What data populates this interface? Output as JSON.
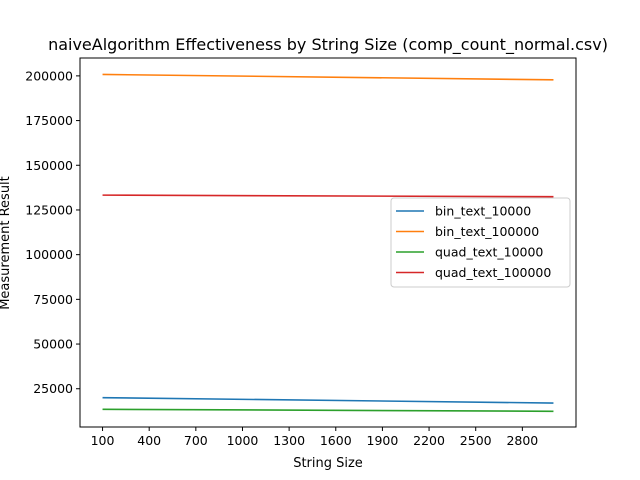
{
  "chart_data": {
    "type": "line",
    "title": "naiveAlgorithm Effectiveness by String Size (comp_count_normal.csv)",
    "xlabel": "String Size",
    "ylabel": "Measurement Result",
    "x": [
      100,
      3000
    ],
    "x_ticks": [
      100,
      400,
      700,
      1000,
      1300,
      1600,
      1900,
      2200,
      2500,
      2800
    ],
    "y_ticks": [
      25000,
      50000,
      75000,
      100000,
      125000,
      150000,
      175000,
      200000
    ],
    "xlim": [
      -45,
      3145
    ],
    "ylim": [
      3600,
      210000
    ],
    "grid": false,
    "legend_position": "center-right",
    "series": [
      {
        "name": "bin_text_10000",
        "color": "#1f77b4",
        "values": [
          20000,
          17000
        ]
      },
      {
        "name": "bin_text_100000",
        "color": "#ff7f0e",
        "values": [
          200800,
          197800
        ]
      },
      {
        "name": "quad_text_10000",
        "color": "#2ca02c",
        "values": [
          13500,
          12400
        ]
      },
      {
        "name": "quad_text_100000",
        "color": "#d62728",
        "values": [
          133300,
          132400
        ]
      }
    ]
  }
}
